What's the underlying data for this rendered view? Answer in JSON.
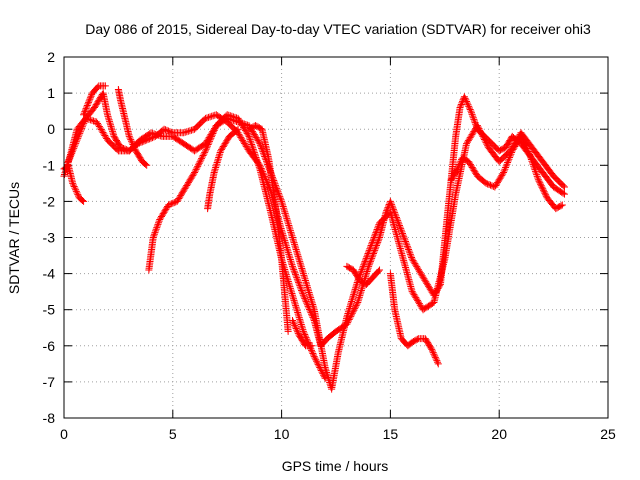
{
  "chart_data": {
    "type": "scatter",
    "title": "Day 086 of 2015, Sidereal Day-to-day VTEC variation (SDTVAR) for receiver ohi3",
    "xlabel": "GPS time / hours",
    "ylabel": "SDTVAR / TECUs",
    "xlim": [
      0,
      25
    ],
    "ylim": [
      -8,
      2
    ],
    "xticks": [
      "0",
      "5",
      "10",
      "15",
      "20",
      "25"
    ],
    "yticks": [
      "2",
      "1",
      "0",
      "-1",
      "-2",
      "-3",
      "-4",
      "-5",
      "-6",
      "-7",
      "-8"
    ],
    "grid": true,
    "marker": "+",
    "color": "#ff0000",
    "series": [
      {
        "x": [
          0.0,
          0.3,
          0.6,
          1.0,
          1.4,
          1.8,
          2.0,
          2.3,
          2.6,
          3.0,
          3.4,
          3.8,
          4.2,
          4.6,
          5.0,
          5.5,
          6.0,
          6.5,
          7.0,
          7.5,
          8.0,
          8.5,
          9.0,
          9.5,
          10.0,
          10.5,
          11.0,
          11.5,
          11.8,
          12.1,
          12.5,
          13.0,
          13.5,
          14.0,
          14.5,
          14.8,
          15.0,
          15.5,
          16.0,
          16.5,
          17.0,
          17.3,
          17.6,
          18.0,
          18.2,
          18.4,
          18.7,
          19.0,
          19.5,
          20.0,
          20.3,
          20.6,
          21.0,
          21.5,
          22.0,
          22.5,
          23.0
        ],
        "y": [
          -1.3,
          -0.7,
          0.0,
          0.3,
          0.6,
          1.0,
          0.4,
          -0.2,
          -0.5,
          -0.6,
          -0.4,
          -0.3,
          -0.2,
          0.0,
          -0.1,
          -0.1,
          0.0,
          0.3,
          0.4,
          0.2,
          -0.1,
          -0.6,
          -1.0,
          -1.7,
          -2.8,
          -3.8,
          -4.6,
          -5.3,
          -6.0,
          -5.8,
          -5.6,
          -5.4,
          -4.8,
          -3.8,
          -3.0,
          -2.3,
          -2.0,
          -2.8,
          -3.6,
          -4.1,
          -4.6,
          -4.3,
          -2.5,
          -0.2,
          0.6,
          0.9,
          0.5,
          0.0,
          -0.3,
          -0.6,
          -0.5,
          -0.2,
          -0.4,
          -0.8,
          -1.2,
          -1.6,
          -1.8
        ]
      },
      {
        "x": [
          0.2,
          0.6,
          1.0,
          1.5,
          2.0,
          2.5,
          3.0,
          3.5,
          4.0,
          4.5,
          5.0,
          5.5,
          6.0,
          6.5,
          7.0,
          7.5,
          8.0,
          8.5,
          9.0,
          9.5,
          10.0,
          10.5,
          11.0,
          11.5,
          12.0,
          12.3,
          12.6,
          13.0,
          13.5,
          14.0,
          14.5,
          15.0,
          15.5,
          16.0,
          16.5,
          17.0,
          17.5,
          18.0,
          18.5,
          19.0,
          19.5,
          20.0,
          20.5,
          21.0,
          21.5,
          22.0,
          22.5,
          23.0
        ],
        "y": [
          -0.9,
          -0.3,
          0.3,
          0.2,
          -0.3,
          -0.6,
          -0.6,
          -0.3,
          -0.1,
          -0.2,
          -0.2,
          -0.4,
          -0.6,
          -0.4,
          0.1,
          0.3,
          0.2,
          0.1,
          -0.4,
          -1.2,
          -2.0,
          -3.0,
          -4.0,
          -5.0,
          -6.6,
          -7.2,
          -6.2,
          -5.2,
          -4.2,
          -3.4,
          -2.6,
          -2.3,
          -3.4,
          -4.5,
          -5.0,
          -4.8,
          -3.6,
          -1.8,
          -0.4,
          0.1,
          -0.5,
          -0.9,
          -0.6,
          -0.1,
          -0.5,
          -0.9,
          -1.3,
          -1.6
        ]
      },
      {
        "x": [
          0.0,
          0.2,
          0.4,
          0.7,
          0.9
        ],
        "y": [
          -1.1,
          -1.0,
          -1.5,
          -1.9,
          -2.0
        ]
      },
      {
        "x": [
          3.9,
          4.1,
          4.4,
          4.8,
          5.2,
          5.6,
          6.0,
          6.5,
          7.0,
          7.5,
          8.0,
          8.5,
          9.0,
          9.5,
          10.0,
          10.5,
          11.0,
          11.5,
          12.0
        ],
        "y": [
          -3.9,
          -3.0,
          -2.5,
          -2.1,
          -2.0,
          -1.6,
          -1.2,
          -0.6,
          0.1,
          0.4,
          0.3,
          -0.2,
          -1.1,
          -2.3,
          -3.6,
          -4.6,
          -5.6,
          -6.3,
          -6.9
        ]
      },
      {
        "x": [
          2.5,
          2.6,
          2.8,
          3.0,
          3.3,
          3.6,
          3.8
        ],
        "y": [
          1.1,
          0.8,
          0.3,
          -0.2,
          -0.6,
          -0.9,
          -1.0
        ]
      },
      {
        "x": [
          6.6,
          6.7,
          6.9,
          7.2,
          7.6,
          8.0
        ],
        "y": [
          -2.2,
          -1.8,
          -1.2,
          -0.6,
          -0.2,
          0.0
        ]
      },
      {
        "x": [
          8.5,
          8.8,
          9.1,
          9.4,
          9.7,
          10.0,
          10.3
        ],
        "y": [
          0.0,
          0.1,
          0.0,
          -0.8,
          -2.0,
          -3.6,
          -5.6
        ]
      },
      {
        "x": [
          10.5,
          10.8,
          11.1,
          11.4
        ],
        "y": [
          -5.3,
          -5.7,
          -6.0,
          -6.0
        ]
      },
      {
        "x": [
          13.0,
          13.3,
          13.6,
          13.9,
          14.2,
          14.5
        ],
        "y": [
          -3.8,
          -3.9,
          -4.2,
          -4.3,
          -4.1,
          -3.9
        ]
      },
      {
        "x": [
          15.0,
          15.2,
          15.5,
          15.8,
          16.0,
          16.3,
          16.6,
          16.9,
          17.2
        ],
        "y": [
          -4.0,
          -5.0,
          -5.8,
          -6.0,
          -5.9,
          -5.8,
          -5.8,
          -6.1,
          -6.5
        ]
      },
      {
        "x": [
          17.8,
          18.0,
          18.3,
          18.6,
          19.0,
          19.4,
          19.8,
          20.2,
          20.6,
          21.0,
          21.4,
          21.8,
          22.2,
          22.6,
          22.9
        ],
        "y": [
          -1.4,
          -1.2,
          -0.8,
          -0.9,
          -1.3,
          -1.5,
          -1.6,
          -1.2,
          -0.6,
          -0.2,
          -0.7,
          -1.4,
          -1.9,
          -2.2,
          -2.1
        ]
      },
      {
        "x": [
          0.9,
          1.1,
          1.3,
          1.6,
          1.9
        ],
        "y": [
          0.4,
          0.7,
          1.0,
          1.2,
          1.2
        ]
      }
    ]
  }
}
